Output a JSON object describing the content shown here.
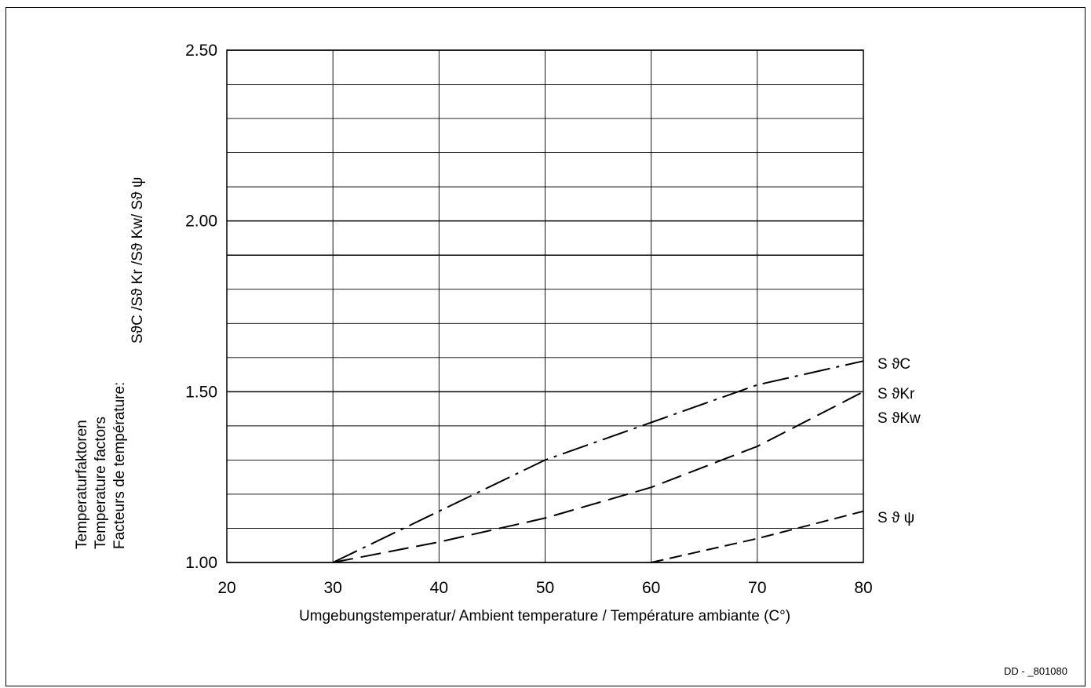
{
  "chart_data": {
    "type": "line",
    "x_ticks": [
      20,
      30,
      40,
      50,
      60,
      70,
      80
    ],
    "y_ticks": [
      "1.00",
      "1.50",
      "2.00",
      "2.50"
    ],
    "xlim": [
      20,
      80
    ],
    "ylim": [
      1.0,
      2.5
    ],
    "y_minor_step": 0.1,
    "grid": true,
    "xlabel": "Umgebungstemperatur/ Ambient temperature / Température ambiante (C°)",
    "ylabel_lines": [
      "Temperaturfaktoren",
      "Temperature factors",
      "Facteurs de température:"
    ],
    "ylabel_symbols": "SϑC /Sϑ Kr /Sϑ Kw/ Sϑ ψ",
    "series": [
      {
        "name": "S ϑC",
        "style": "dash-dot",
        "x": [
          30,
          40,
          50,
          60,
          70,
          80
        ],
        "y": [
          1.0,
          1.15,
          1.3,
          1.41,
          1.52,
          1.59
        ]
      },
      {
        "name": "S ϑKr",
        "style": "long-dash",
        "x": [
          30,
          40,
          50,
          60,
          70,
          80
        ],
        "y": [
          1.0,
          1.06,
          1.13,
          1.22,
          1.34,
          1.5
        ]
      },
      {
        "name": "S ϑKw",
        "style": "long-dash",
        "x": [
          30,
          40,
          50,
          60,
          70,
          80
        ],
        "y": [
          1.0,
          1.06,
          1.13,
          1.22,
          1.34,
          1.5
        ]
      },
      {
        "name": "S ϑ ψ",
        "style": "short-dash",
        "x": [
          60,
          70,
          80
        ],
        "y": [
          1.0,
          1.07,
          1.15
        ]
      }
    ]
  },
  "doc_id": "DD - _801080"
}
